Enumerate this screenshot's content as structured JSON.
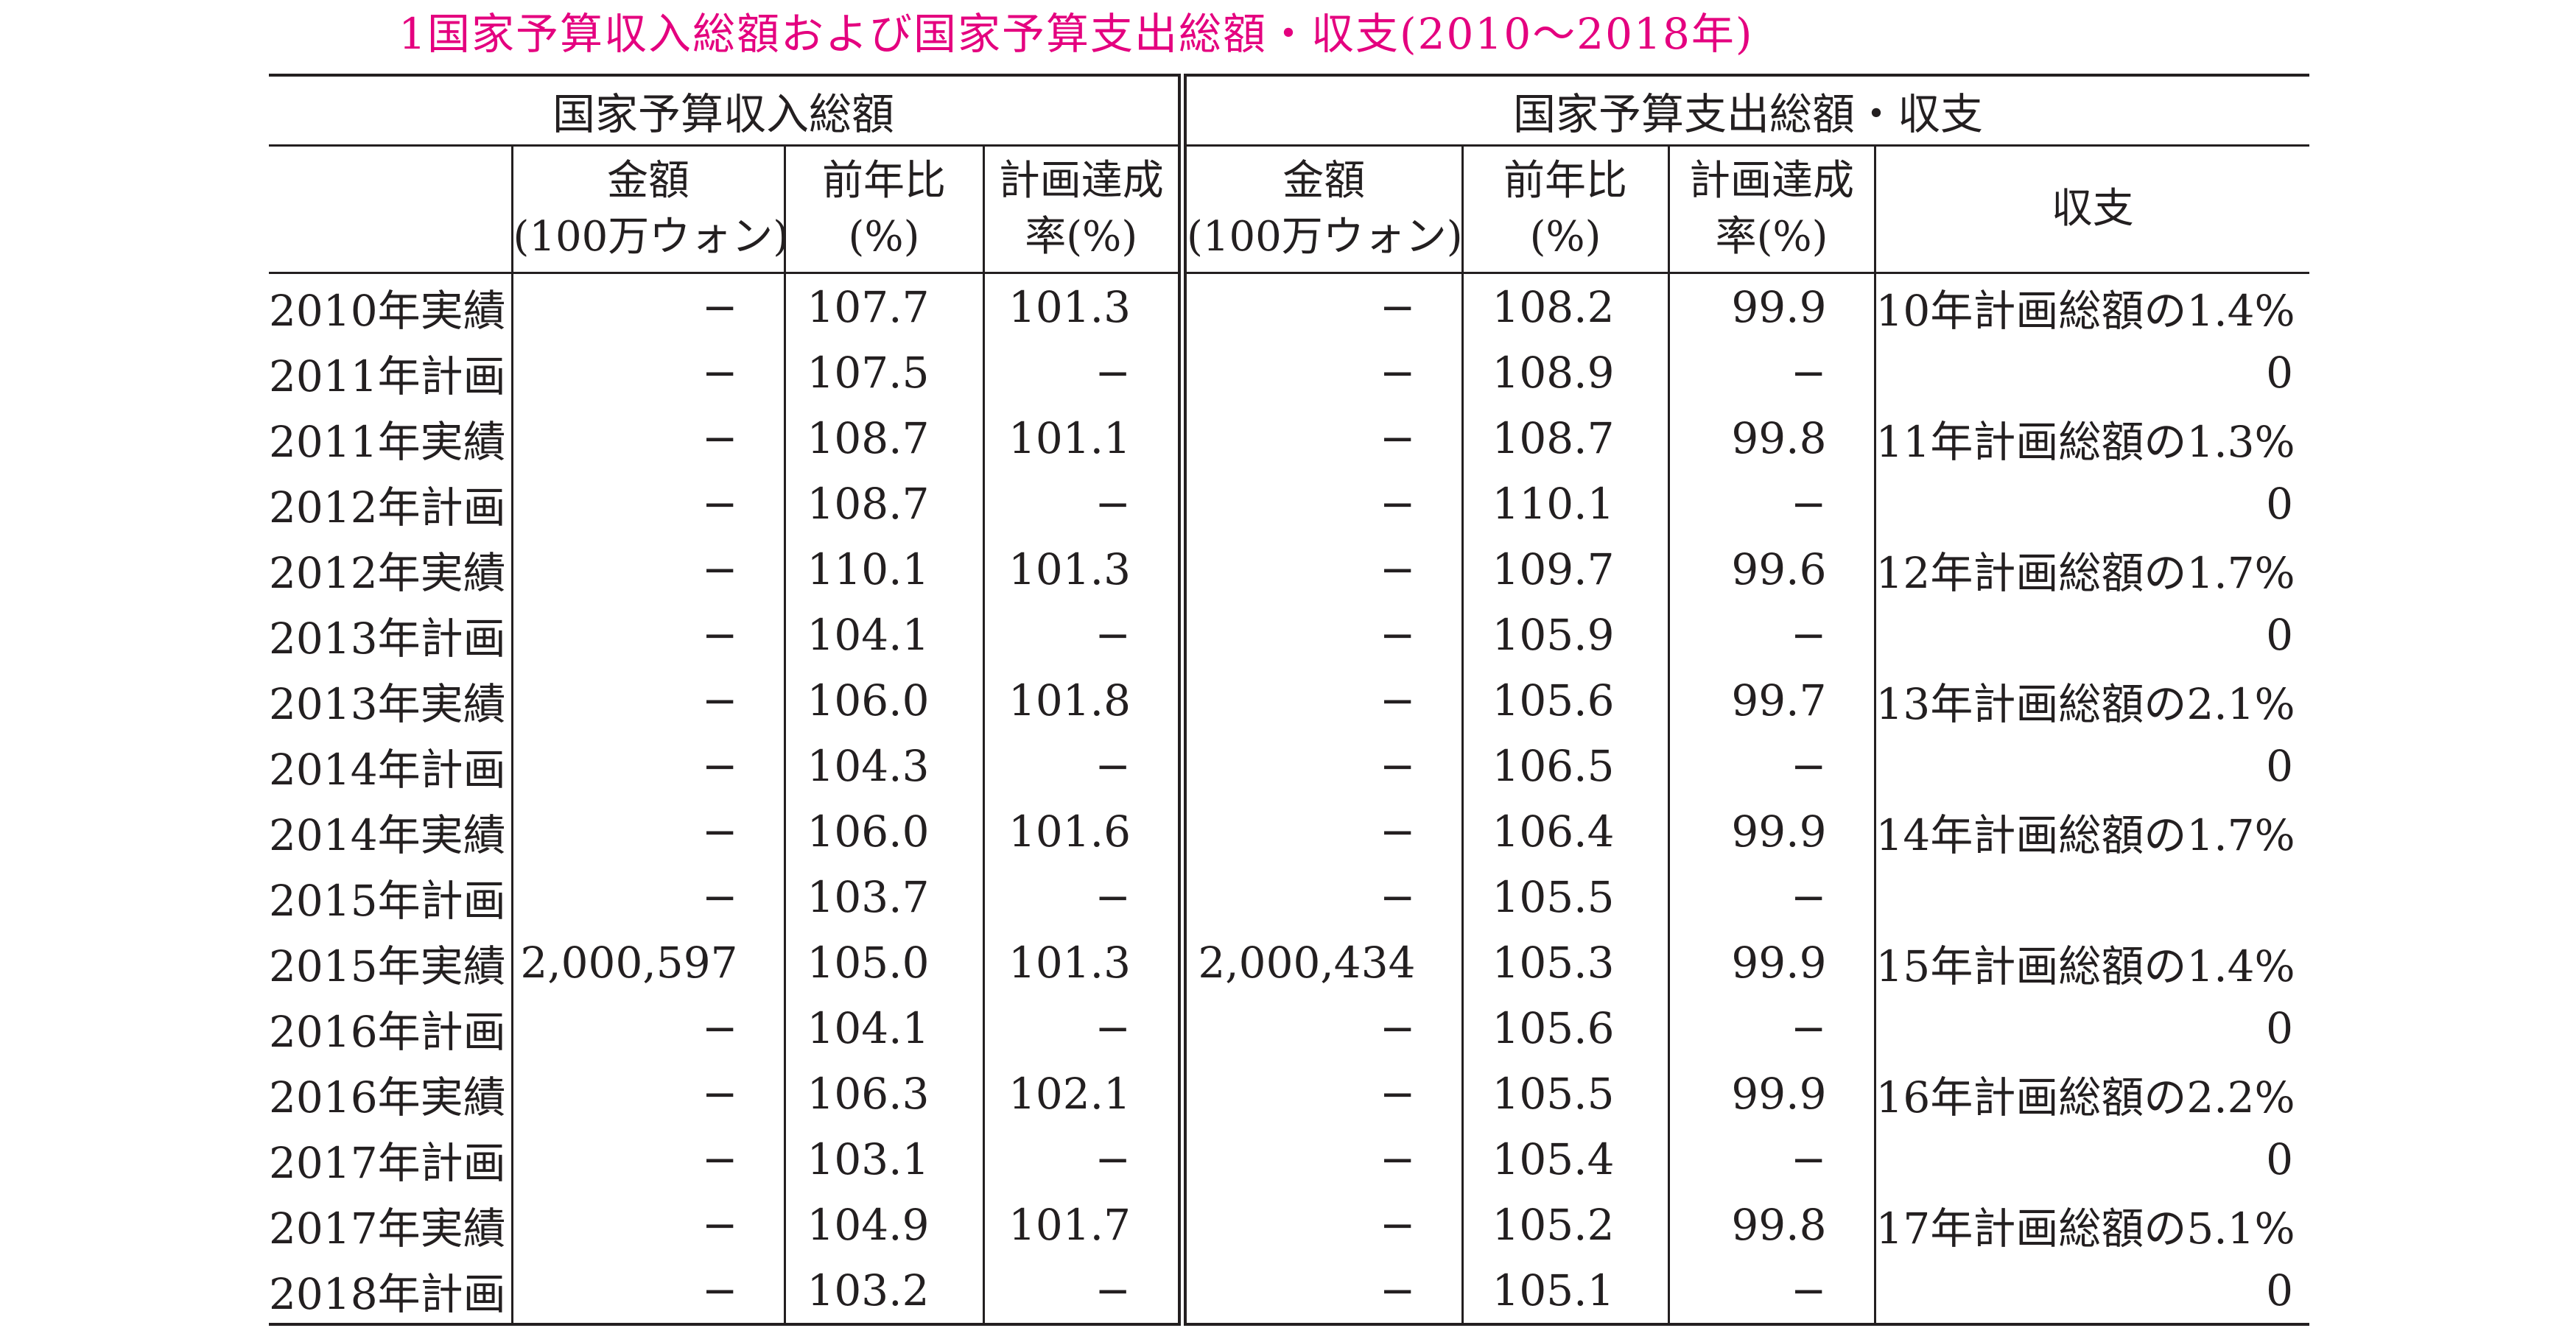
{
  "title": {
    "number": "1",
    "text": "国家予算収入総額および国家予算支出総額・収支(2010〜2018年)"
  },
  "header": {
    "group_revenue": "国家予算収入総額",
    "group_expenditure": "国家予算支出総額・収支",
    "amount": [
      "金額",
      "(100万ウォン)"
    ],
    "yoy": [
      "前年比",
      "(%)"
    ],
    "achievement": [
      "計画達成",
      "率(%)"
    ],
    "balance": "収支"
  },
  "rows": [
    {
      "label": "2010年実績",
      "rev_amount": "−",
      "rev_yoy": "107.7",
      "rev_rate": "101.3",
      "exp_amount": "−",
      "exp_yoy": "108.2",
      "exp_rate": "99.9",
      "balance": "10年計画総額の1.4%"
    },
    {
      "label": "2011年計画",
      "rev_amount": "−",
      "rev_yoy": "107.5",
      "rev_rate": "−",
      "exp_amount": "−",
      "exp_yoy": "108.9",
      "exp_rate": "−",
      "balance": "0"
    },
    {
      "label": "2011年実績",
      "rev_amount": "−",
      "rev_yoy": "108.7",
      "rev_rate": "101.1",
      "exp_amount": "−",
      "exp_yoy": "108.7",
      "exp_rate": "99.8",
      "balance": "11年計画総額の1.3%"
    },
    {
      "label": "2012年計画",
      "rev_amount": "−",
      "rev_yoy": "108.7",
      "rev_rate": "−",
      "exp_amount": "−",
      "exp_yoy": "110.1",
      "exp_rate": "−",
      "balance": "0"
    },
    {
      "label": "2012年実績",
      "rev_amount": "−",
      "rev_yoy": "110.1",
      "rev_rate": "101.3",
      "exp_amount": "−",
      "exp_yoy": "109.7",
      "exp_rate": "99.6",
      "balance": "12年計画総額の1.7%"
    },
    {
      "label": "2013年計画",
      "rev_amount": "−",
      "rev_yoy": "104.1",
      "rev_rate": "−",
      "exp_amount": "−",
      "exp_yoy": "105.9",
      "exp_rate": "−",
      "balance": "0"
    },
    {
      "label": "2013年実績",
      "rev_amount": "−",
      "rev_yoy": "106.0",
      "rev_rate": "101.8",
      "exp_amount": "−",
      "exp_yoy": "105.6",
      "exp_rate": "99.7",
      "balance": "13年計画総額の2.1%"
    },
    {
      "label": "2014年計画",
      "rev_amount": "−",
      "rev_yoy": "104.3",
      "rev_rate": "−",
      "exp_amount": "−",
      "exp_yoy": "106.5",
      "exp_rate": "−",
      "balance": "0"
    },
    {
      "label": "2014年実績",
      "rev_amount": "−",
      "rev_yoy": "106.0",
      "rev_rate": "101.6",
      "exp_amount": "−",
      "exp_yoy": "106.4",
      "exp_rate": "99.9",
      "balance": "14年計画総額の1.7%"
    },
    {
      "label": "2015年計画",
      "rev_amount": "−",
      "rev_yoy": "103.7",
      "rev_rate": "−",
      "exp_amount": "−",
      "exp_yoy": "105.5",
      "exp_rate": "−",
      "balance": ""
    },
    {
      "label": "2015年実績",
      "rev_amount": "2,000,597",
      "rev_yoy": "105.0",
      "rev_rate": "101.3",
      "exp_amount": "2,000,434",
      "exp_yoy": "105.3",
      "exp_rate": "99.9",
      "balance": "15年計画総額の1.4%"
    },
    {
      "label": "2016年計画",
      "rev_amount": "−",
      "rev_yoy": "104.1",
      "rev_rate": "−",
      "exp_amount": "−",
      "exp_yoy": "105.6",
      "exp_rate": "−",
      "balance": "0"
    },
    {
      "label": "2016年実績",
      "rev_amount": "−",
      "rev_yoy": "106.3",
      "rev_rate": "102.1",
      "exp_amount": "−",
      "exp_yoy": "105.5",
      "exp_rate": "99.9",
      "balance": "16年計画総額の2.2%"
    },
    {
      "label": "2017年計画",
      "rev_amount": "−",
      "rev_yoy": "103.1",
      "rev_rate": "−",
      "exp_amount": "−",
      "exp_yoy": "105.4",
      "exp_rate": "−",
      "balance": "0"
    },
    {
      "label": "2017年実績",
      "rev_amount": "−",
      "rev_yoy": "104.9",
      "rev_rate": "101.7",
      "exp_amount": "−",
      "exp_yoy": "105.2",
      "exp_rate": "99.8",
      "balance": "17年計画総額の5.1%"
    },
    {
      "label": "2018年計画",
      "rev_amount": "−",
      "rev_yoy": "103.2",
      "rev_rate": "−",
      "exp_amount": "−",
      "exp_yoy": "105.1",
      "exp_rate": "−",
      "balance": "0"
    }
  ],
  "colors": {
    "title": "#e4007f",
    "text": "#231f20"
  }
}
